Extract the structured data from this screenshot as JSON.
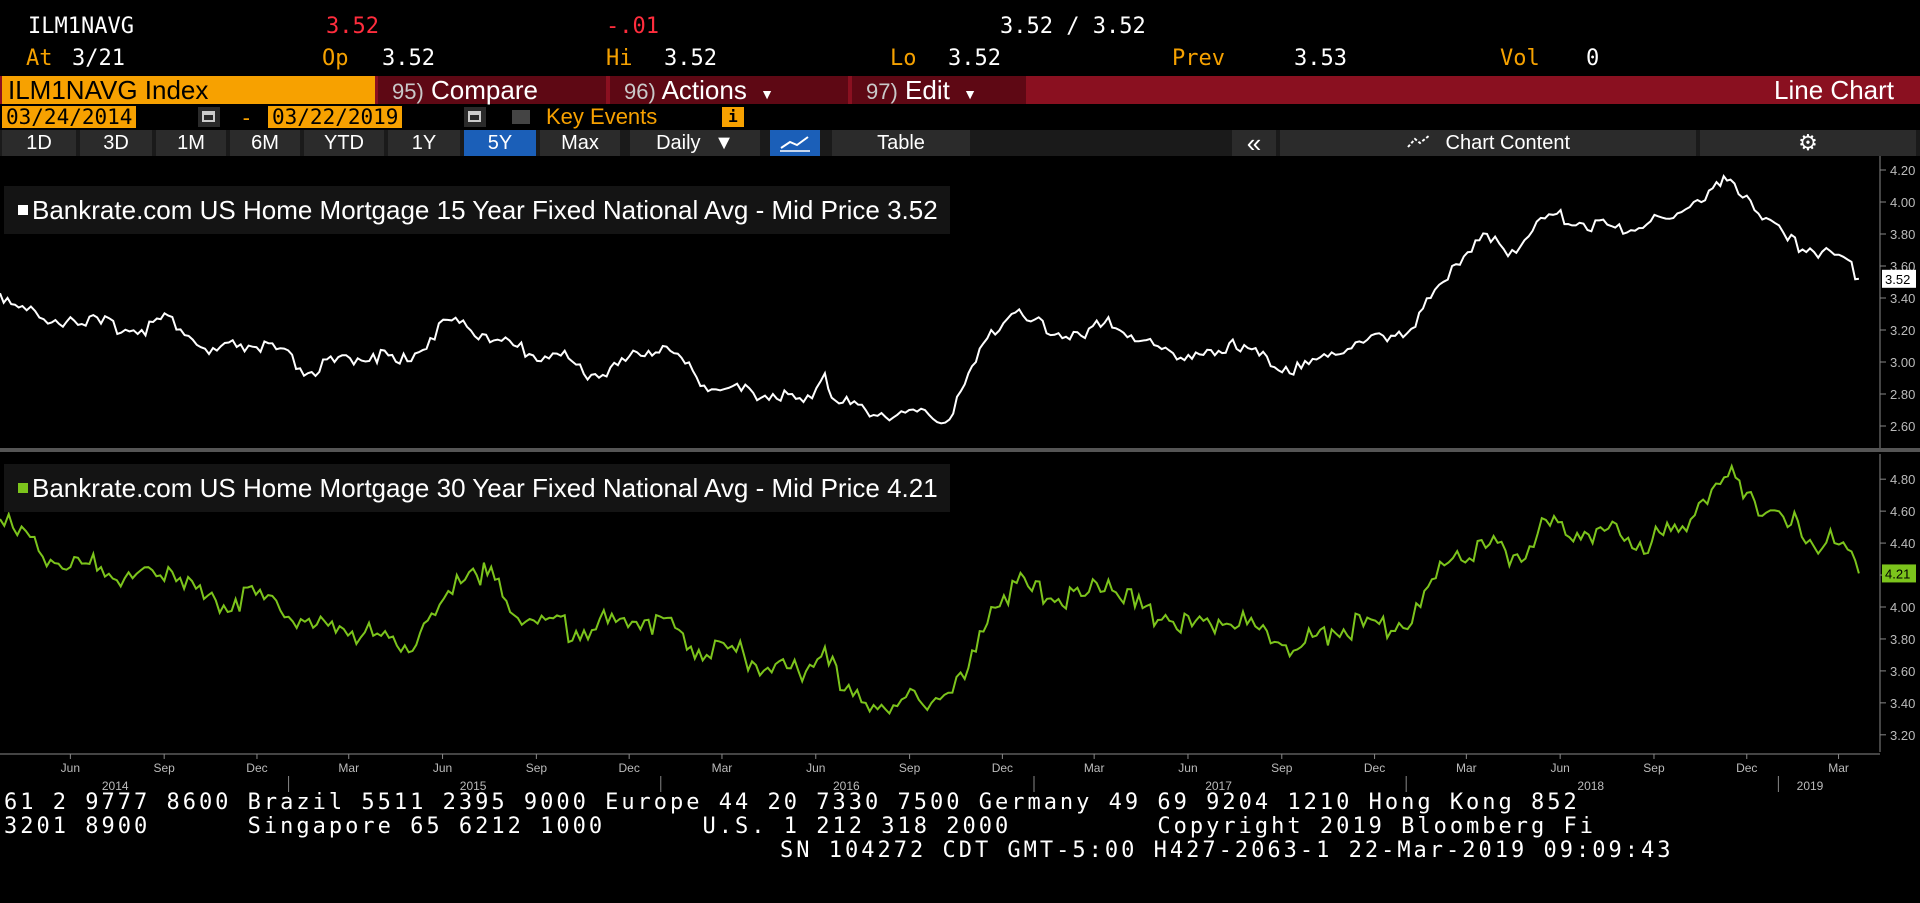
{
  "quote": {
    "ticker": "ILM1NAVG",
    "last": "3.52",
    "change": "-.01",
    "bid_ask": "3.52 / 3.52",
    "at_label": "At",
    "at_date": "3/21",
    "op_label": "Op",
    "op_value": "3.52",
    "hi_label": "Hi",
    "hi_value": "3.52",
    "lo_label": "Lo",
    "lo_value": "3.52",
    "prev_label": "Prev",
    "prev_value": "3.53",
    "vol_label": "Vol",
    "vol_value": "0"
  },
  "command_bar": {
    "security": "ILM1NAVG Index",
    "compare_num": "95)",
    "compare_label": "Compare",
    "actions_num": "96)",
    "actions_label": "Actions",
    "edit_num": "97)",
    "edit_label": "Edit",
    "chart_type": "Line Chart"
  },
  "date_range": {
    "start": "03/24/2014",
    "separator": "-",
    "end": "03/22/2019",
    "key_events": "Key Events",
    "info_glyph": "i"
  },
  "range_buttons": [
    {
      "label": "1D",
      "active": false
    },
    {
      "label": "3D",
      "active": false
    },
    {
      "label": "1M",
      "active": false
    },
    {
      "label": "6M",
      "active": false
    },
    {
      "label": "YTD",
      "active": false
    },
    {
      "label": "1Y",
      "active": false
    },
    {
      "label": "5Y",
      "active": true
    },
    {
      "label": "Max",
      "active": false
    }
  ],
  "toolbar": {
    "frequency": "Daily",
    "table": "Table",
    "collapse": "«",
    "chart_content": "Chart Content"
  },
  "colors": {
    "background": "#000000",
    "accent_orange": "#f7a100",
    "command_bar": "#8a1020",
    "series_15y": "#ffffff",
    "series_30y": "#7cc41c",
    "active_button": "#1b5fb8",
    "negative": "#ff2d3d"
  },
  "icons": {
    "calendar": "calendar-icon",
    "chart_line": "line-chart-icon",
    "chart_content": "chart-content-icon",
    "settings": "gear-icon",
    "dropdown": "chevron-down-icon"
  },
  "chart_data": [
    {
      "type": "line",
      "series": [
        {
          "name": "Bankrate.com US Home Mortgage 15 Year Fixed National Avg - Mid Price",
          "last_label": "3.52",
          "points": [
            [
              "2014-03-24",
              3.43
            ],
            [
              "2014-04-15",
              3.35
            ],
            [
              "2014-05-10",
              3.24
            ],
            [
              "2014-06-01",
              3.28
            ],
            [
              "2014-07-01",
              3.24
            ],
            [
              "2014-08-10",
              3.2
            ],
            [
              "2014-09-05",
              3.29
            ],
            [
              "2014-10-15",
              3.05
            ],
            [
              "2014-11-15",
              3.11
            ],
            [
              "2014-12-20",
              3.08
            ],
            [
              "2015-01-20",
              2.93
            ],
            [
              "2015-02-15",
              3.0
            ],
            [
              "2015-03-25",
              3.05
            ],
            [
              "2015-04-20",
              2.99
            ],
            [
              "2015-05-20",
              3.15
            ],
            [
              "2015-06-10",
              3.26
            ],
            [
              "2015-06-25",
              3.22
            ],
            [
              "2015-07-25",
              3.14
            ],
            [
              "2015-08-25",
              3.05
            ],
            [
              "2015-09-25",
              3.04
            ],
            [
              "2015-10-25",
              2.92
            ],
            [
              "2015-11-20",
              2.98
            ],
            [
              "2015-12-20",
              3.07
            ],
            [
              "2016-01-03",
              3.1
            ],
            [
              "2016-01-25",
              2.99
            ],
            [
              "2016-02-20",
              2.83
            ],
            [
              "2016-03-20",
              2.82
            ],
            [
              "2016-04-20",
              2.8
            ],
            [
              "2016-05-20",
              2.75
            ],
            [
              "2016-06-10",
              2.93
            ],
            [
              "2016-06-20",
              2.76
            ],
            [
              "2016-07-20",
              2.7
            ],
            [
              "2016-08-20",
              2.67
            ],
            [
              "2016-09-20",
              2.67
            ],
            [
              "2016-10-10",
              2.64
            ],
            [
              "2016-10-25",
              2.86
            ],
            [
              "2016-11-05",
              3.0
            ],
            [
              "2016-11-20",
              3.2
            ],
            [
              "2016-12-10",
              3.3
            ],
            [
              "2016-12-25",
              3.26
            ],
            [
              "2017-01-25",
              3.18
            ],
            [
              "2017-02-20",
              3.15
            ],
            [
              "2017-03-15",
              3.28
            ],
            [
              "2017-04-10",
              3.13
            ],
            [
              "2017-05-10",
              3.09
            ],
            [
              "2017-06-05",
              3.02
            ],
            [
              "2017-07-01",
              3.07
            ],
            [
              "2017-07-15",
              3.14
            ],
            [
              "2017-08-10",
              3.04
            ],
            [
              "2017-09-05",
              2.97
            ],
            [
              "2017-09-20",
              2.96
            ],
            [
              "2017-10-20",
              3.06
            ],
            [
              "2017-11-20",
              3.12
            ],
            [
              "2017-12-25",
              3.19
            ],
            [
              "2018-01-10",
              3.22
            ],
            [
              "2018-01-25",
              3.4
            ],
            [
              "2018-02-15",
              3.6
            ],
            [
              "2018-03-10",
              3.76
            ],
            [
              "2018-03-25",
              3.75
            ],
            [
              "2018-04-15",
              3.7
            ],
            [
              "2018-05-05",
              3.82
            ],
            [
              "2018-05-25",
              3.92
            ],
            [
              "2018-06-20",
              3.87
            ],
            [
              "2018-07-25",
              3.84
            ],
            [
              "2018-08-25",
              3.86
            ],
            [
              "2018-09-20",
              3.9
            ],
            [
              "2018-10-10",
              4.0
            ],
            [
              "2018-11-05",
              4.1
            ],
            [
              "2018-11-15",
              4.14
            ],
            [
              "2018-12-01",
              4.04
            ],
            [
              "2018-12-20",
              3.9
            ],
            [
              "2019-01-10",
              3.76
            ],
            [
              "2019-02-01",
              3.71
            ],
            [
              "2019-02-25",
              3.67
            ],
            [
              "2019-03-10",
              3.64
            ],
            [
              "2019-03-21",
              3.52
            ]
          ]
        }
      ],
      "yticks": [
        "2.60",
        "2.80",
        "3.00",
        "3.20",
        "3.40",
        "3.60",
        "3.80",
        "4.00",
        "4.20"
      ],
      "ylim": [
        2.5,
        4.25
      ]
    },
    {
      "type": "line",
      "series": [
        {
          "name": "Bankrate.com US Home Mortgage 30 Year Fixed National Avg - Mid Price",
          "last_label": "4.21",
          "points": [
            [
              "2014-03-24",
              4.55
            ],
            [
              "2014-04-10",
              4.45
            ],
            [
              "2014-05-01",
              4.35
            ],
            [
              "2014-06-01",
              4.25
            ],
            [
              "2014-07-01",
              4.25
            ],
            [
              "2014-08-01",
              4.18
            ],
            [
              "2014-09-05",
              4.25
            ],
            [
              "2014-10-10",
              4.05
            ],
            [
              "2014-11-10",
              4.05
            ],
            [
              "2014-12-20",
              4.04
            ],
            [
              "2015-01-25",
              3.87
            ],
            [
              "2015-02-20",
              3.88
            ],
            [
              "2015-03-25",
              3.82
            ],
            [
              "2015-04-25",
              3.76
            ],
            [
              "2015-05-25",
              3.95
            ],
            [
              "2015-06-15",
              4.2
            ],
            [
              "2015-07-01",
              4.24
            ],
            [
              "2015-07-15",
              4.2
            ],
            [
              "2015-08-10",
              3.95
            ],
            [
              "2015-09-10",
              3.92
            ],
            [
              "2015-10-10",
              3.85
            ],
            [
              "2015-11-10",
              3.9
            ],
            [
              "2015-12-20",
              3.92
            ],
            [
              "2016-01-15",
              3.87
            ],
            [
              "2016-02-15",
              3.7
            ],
            [
              "2016-03-15",
              3.72
            ],
            [
              "2016-04-15",
              3.62
            ],
            [
              "2016-05-15",
              3.6
            ],
            [
              "2016-06-10",
              3.75
            ],
            [
              "2016-06-25",
              3.48
            ],
            [
              "2016-07-20",
              3.4
            ],
            [
              "2016-08-20",
              3.38
            ],
            [
              "2016-09-10",
              3.42
            ],
            [
              "2016-10-05",
              3.45
            ],
            [
              "2016-10-25",
              3.55
            ],
            [
              "2016-11-05",
              3.72
            ],
            [
              "2016-11-20",
              4.0
            ],
            [
              "2016-12-15",
              4.15
            ],
            [
              "2016-12-30",
              4.1
            ],
            [
              "2017-01-25",
              4.05
            ],
            [
              "2017-02-20",
              4.07
            ],
            [
              "2017-03-15",
              4.17
            ],
            [
              "2017-04-10",
              4.0
            ],
            [
              "2017-05-10",
              3.95
            ],
            [
              "2017-06-05",
              3.88
            ],
            [
              "2017-07-01",
              3.92
            ],
            [
              "2017-08-10",
              3.86
            ],
            [
              "2017-09-05",
              3.76
            ],
            [
              "2017-09-20",
              3.75
            ],
            [
              "2017-10-20",
              3.86
            ],
            [
              "2017-11-20",
              3.88
            ],
            [
              "2017-12-25",
              3.9
            ],
            [
              "2018-01-15",
              4.0
            ],
            [
              "2018-01-30",
              4.18
            ],
            [
              "2018-02-20",
              4.35
            ],
            [
              "2018-03-20",
              4.37
            ],
            [
              "2018-04-20",
              4.33
            ],
            [
              "2018-05-10",
              4.46
            ],
            [
              "2018-05-30",
              4.53
            ],
            [
              "2018-06-25",
              4.47
            ],
            [
              "2018-07-30",
              4.45
            ],
            [
              "2018-08-30",
              4.41
            ],
            [
              "2018-09-25",
              4.47
            ],
            [
              "2018-10-15",
              4.65
            ],
            [
              "2018-11-05",
              4.77
            ],
            [
              "2018-11-20",
              4.81
            ],
            [
              "2018-12-05",
              4.72
            ],
            [
              "2018-12-20",
              4.59
            ],
            [
              "2019-01-10",
              4.5
            ],
            [
              "2019-01-20",
              4.54
            ],
            [
              "2019-02-01",
              4.42
            ],
            [
              "2019-02-25",
              4.4
            ],
            [
              "2019-03-10",
              4.36
            ],
            [
              "2019-03-21",
              4.21
            ]
          ]
        }
      ],
      "yticks": [
        "3.20",
        "3.40",
        "3.60",
        "3.80",
        "4.00",
        "4.20",
        "4.40",
        "4.60",
        "4.80"
      ],
      "ylim": [
        3.13,
        4.92
      ]
    }
  ],
  "x_axis": {
    "months": [
      [
        "2014-06-01",
        "Jun"
      ],
      [
        "2014-09-01",
        "Sep"
      ],
      [
        "2014-12-01",
        "Dec"
      ],
      [
        "2015-03-01",
        "Mar"
      ],
      [
        "2015-06-01",
        "Jun"
      ],
      [
        "2015-09-01",
        "Sep"
      ],
      [
        "2015-12-01",
        "Dec"
      ],
      [
        "2016-03-01",
        "Mar"
      ],
      [
        "2016-06-01",
        "Jun"
      ],
      [
        "2016-09-01",
        "Sep"
      ],
      [
        "2016-12-01",
        "Dec"
      ],
      [
        "2017-03-01",
        "Mar"
      ],
      [
        "2017-06-01",
        "Jun"
      ],
      [
        "2017-09-01",
        "Sep"
      ],
      [
        "2017-12-01",
        "Dec"
      ],
      [
        "2018-03-01",
        "Mar"
      ],
      [
        "2018-06-01",
        "Jun"
      ],
      [
        "2018-09-01",
        "Sep"
      ],
      [
        "2018-12-01",
        "Dec"
      ],
      [
        "2019-03-01",
        "Mar"
      ]
    ],
    "years": [
      [
        "2014-07-15",
        "2014"
      ],
      [
        "2015-07-01",
        "2015"
      ],
      [
        "2016-07-01",
        "2016"
      ],
      [
        "2017-07-01",
        "2017"
      ],
      [
        "2018-07-01",
        "2018"
      ],
      [
        "2019-02-01",
        "2019"
      ]
    ],
    "year_boundaries": [
      "2015-01-01",
      "2016-01-01",
      "2017-01-01",
      "2018-01-01",
      "2019-01-01"
    ],
    "start": "2014-03-24",
    "end": "2019-03-24"
  },
  "footer": {
    "line1": "61 2 9777 8600 Brazil 5511 2395 9000 Europe 44 20 7330 7500 Germany 49 69 9204 1210 Hong Kong 852",
    "line2": "3201 8900      Singapore 65 6212 1000      U.S. 1 212 318 2000         Copyright 2019 Bloomberg Fi",
    "line3": "SN 104272 CDT  GMT-5:00 H427-2063-1 22-Mar-2019 09:09:43"
  }
}
